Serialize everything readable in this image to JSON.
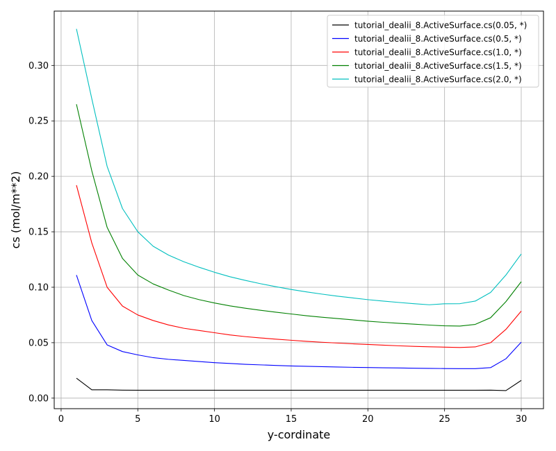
{
  "chart_data": {
    "type": "line",
    "title": "",
    "xlabel": "y-cordinate",
    "ylabel": "cs (mol/m**2)",
    "xlim": [
      -0.45,
      31.45
    ],
    "ylim": [
      -0.0095,
      0.349
    ],
    "xticks": [
      0,
      5,
      10,
      15,
      20,
      25,
      30
    ],
    "yticks": [
      0.0,
      0.05,
      0.1,
      0.15,
      0.2,
      0.25,
      0.3
    ],
    "ytick_labels": [
      "0.00",
      "0.05",
      "0.10",
      "0.15",
      "0.20",
      "0.25",
      "0.30"
    ],
    "grid": true,
    "legend_position": "top-right",
    "x": [
      1,
      2,
      3,
      4,
      5,
      6,
      7,
      8,
      9,
      10,
      11,
      12,
      13,
      14,
      15,
      16,
      17,
      18,
      19,
      20,
      21,
      22,
      23,
      24,
      25,
      26,
      27,
      28,
      29,
      30
    ],
    "series": [
      {
        "name": "tutorial_dealii_8.ActiveSurface.cs(0.05, *)",
        "color": "#000000",
        "values": [
          0.018,
          0.0075,
          0.0075,
          0.0072,
          0.0071,
          0.0071,
          0.0071,
          0.0071,
          0.0071,
          0.0071,
          0.0071,
          0.0071,
          0.0071,
          0.0071,
          0.0071,
          0.0071,
          0.0071,
          0.0071,
          0.0071,
          0.0071,
          0.0071,
          0.0071,
          0.0071,
          0.0071,
          0.0071,
          0.0071,
          0.0071,
          0.0072,
          0.0068,
          0.016
        ]
      },
      {
        "name": "tutorial_dealii_8.ActiveSurface.cs(0.5, *)",
        "color": "#0000ff",
        "values": [
          0.111,
          0.07,
          0.048,
          0.042,
          0.039,
          0.0365,
          0.035,
          0.034,
          0.033,
          0.032,
          0.0313,
          0.0305,
          0.03,
          0.0295,
          0.029,
          0.0287,
          0.0284,
          0.0281,
          0.0278,
          0.0276,
          0.0274,
          0.0272,
          0.027,
          0.0268,
          0.0267,
          0.0266,
          0.0266,
          0.0275,
          0.0355,
          0.0505
        ]
      },
      {
        "name": "tutorial_dealii_8.ActiveSurface.cs(1.0, *)",
        "color": "#ff0000",
        "values": [
          0.192,
          0.14,
          0.1,
          0.083,
          0.075,
          0.07,
          0.066,
          0.063,
          0.061,
          0.059,
          0.057,
          0.0555,
          0.0543,
          0.0532,
          0.0522,
          0.0512,
          0.0504,
          0.0497,
          0.049,
          0.0484,
          0.0478,
          0.0472,
          0.0467,
          0.0463,
          0.046,
          0.0457,
          0.0462,
          0.05,
          0.062,
          0.0785
        ]
      },
      {
        "name": "tutorial_dealii_8.ActiveSurface.cs(1.5, *)",
        "color": "#008000",
        "values": [
          0.265,
          0.205,
          0.154,
          0.126,
          0.111,
          0.103,
          0.0975,
          0.0925,
          0.0888,
          0.0858,
          0.0832,
          0.0811,
          0.0792,
          0.0775,
          0.0759,
          0.0743,
          0.073,
          0.0718,
          0.0706,
          0.0694,
          0.0684,
          0.0675,
          0.0667,
          0.0659,
          0.0652,
          0.065,
          0.0665,
          0.0725,
          0.087,
          0.105
        ]
      },
      {
        "name": "tutorial_dealii_8.ActiveSurface.cs(2.0, *)",
        "color": "#00bfbf",
        "values": [
          0.333,
          0.27,
          0.209,
          0.171,
          0.15,
          0.137,
          0.129,
          0.123,
          0.118,
          0.1135,
          0.1095,
          0.1062,
          0.1032,
          0.1005,
          0.098,
          0.0958,
          0.0938,
          0.092,
          0.0904,
          0.0888,
          0.0875,
          0.0863,
          0.0852,
          0.0842,
          0.0851,
          0.0852,
          0.0875,
          0.0953,
          0.111,
          0.13
        ]
      }
    ]
  }
}
